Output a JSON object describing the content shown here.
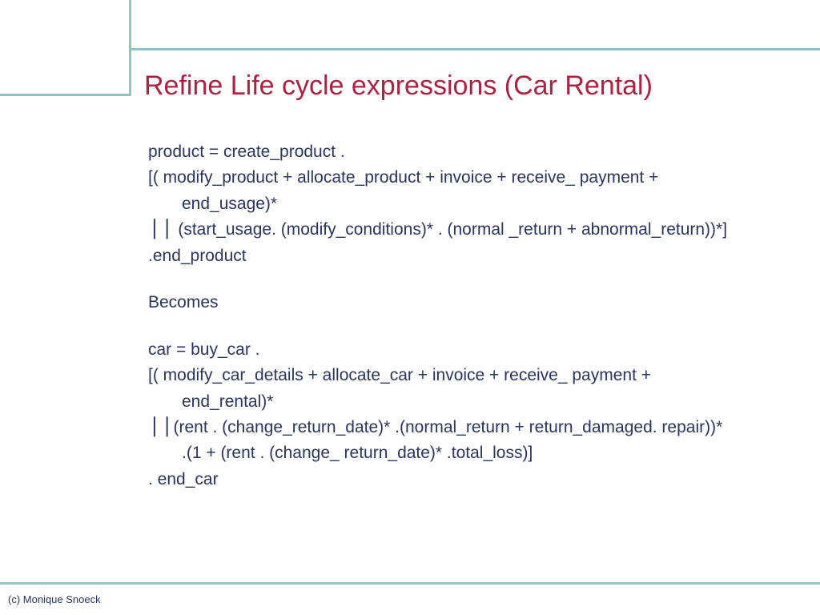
{
  "title": "Refine Life cycle expressions (Car Rental)",
  "lines": {
    "l1": "product = create_product .",
    "l2": "[( modify_product + allocate_product + invoice + receive_ payment +",
    "l2b": "end_usage)*",
    "l3": "⎪⎪ (start_usage. (modify_conditions)* . (normal _return + abnormal_return))*]",
    "l4": ".end_product",
    "l5": "Becomes",
    "l6": "car = buy_car .",
    "l7": "[( modify_car_details + allocate_car + invoice + receive_ payment +",
    "l7b": "end_rental)*",
    "l8": "⎪⎪(rent . (change_return_date)* .(normal_return + return_damaged. repair))*",
    "l8b": ".(1 + (rent . (change_ return_date)* .total_loss)]",
    "l9": ". end_car"
  },
  "footer": "(c) Monique Snoeck",
  "colors": {
    "accent": "#8fc4c4",
    "title": "#b02040",
    "text": "#2a3560",
    "background": "#ffffff"
  },
  "fonts": {
    "title_size": 34,
    "body_size": 21,
    "footer_size": 13
  }
}
